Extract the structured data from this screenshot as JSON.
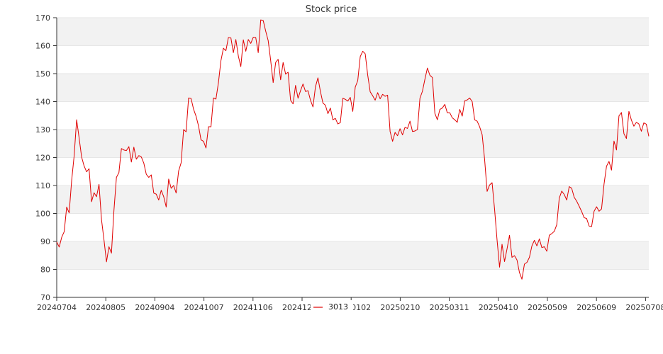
{
  "chart_data": {
    "type": "line",
    "title": "Stock price",
    "xlabel": "",
    "ylabel": "",
    "ylim": [
      70,
      170
    ],
    "yticks": [
      70,
      80,
      90,
      100,
      110,
      120,
      130,
      140,
      150,
      160,
      170
    ],
    "xtick_labels": [
      "20240704",
      "20240805",
      "20240904",
      "20241007",
      "20241106",
      "20241206",
      "20250102",
      "20250210",
      "20250311",
      "20250410",
      "20250509",
      "20250609",
      "20250708"
    ],
    "grid": "horizontal bands",
    "legend_position": "bottom-center",
    "series": [
      {
        "name": "3013",
        "color": "#e00000",
        "values": [
          89.8,
          88.0,
          91.5,
          93.5,
          102.3,
          100.2,
          111.8,
          120.6,
          133.5,
          127.0,
          120.2,
          117.0,
          114.9,
          116.0,
          104.2,
          107.4,
          106.0,
          110.4,
          97.8,
          90.5,
          82.7,
          88.1,
          85.8,
          101.1,
          112.9,
          114.6,
          123.2,
          122.7,
          122.5,
          123.9,
          118.4,
          123.7,
          119.4,
          120.7,
          120.2,
          118.0,
          114.0,
          112.9,
          113.8,
          107.3,
          106.9,
          104.8,
          108.3,
          106.0,
          102.3,
          112.3,
          109.0,
          110.0,
          107.3,
          115.2,
          118.1,
          130.0,
          129.2,
          141.3,
          141.1,
          137.3,
          134.8,
          131.3,
          126.3,
          125.8,
          123.4,
          131.0,
          131.0,
          141.3,
          140.9,
          146.8,
          154.6,
          159.1,
          158.2,
          162.9,
          162.8,
          157.5,
          162.2,
          156.3,
          152.5,
          162.1,
          158.0,
          162.2,
          160.8,
          163.0,
          162.9,
          157.5,
          169.2,
          169.0,
          165.2,
          161.8,
          154.7,
          146.8,
          154.0,
          155.1,
          147.8,
          154.0,
          149.8,
          150.5,
          140.5,
          139.2,
          145.8,
          141.2,
          143.9,
          146.3,
          143.6,
          143.9,
          140.5,
          138.1,
          145.3,
          148.5,
          143.6,
          139.5,
          138.7,
          135.7,
          137.7,
          133.5,
          134.0,
          132.0,
          132.5,
          141.2,
          140.8,
          140.2,
          141.5,
          136.5,
          145.2,
          147.5,
          156.1,
          158.0,
          157.1,
          149.5,
          143.5,
          142.1,
          140.5,
          143.2,
          141.0,
          142.6,
          141.9,
          142.3,
          129.3,
          125.8,
          129.0,
          127.8,
          130.3,
          128.1,
          130.8,
          130.4,
          133.0,
          129.3,
          129.5,
          130.0,
          141.2,
          143.7,
          148.0,
          152.0,
          149.4,
          148.6,
          135.8,
          133.5,
          137.2,
          137.7,
          139.0,
          136.0,
          136.0,
          134.2,
          133.5,
          132.6,
          137.2,
          134.8,
          140.3,
          140.6,
          141.3,
          140.0,
          133.5,
          133.0,
          131.0,
          128.2,
          119.3,
          107.9,
          110.2,
          111.0,
          101.5,
          90.5,
          80.8,
          89.0,
          82.8,
          87.3,
          92.2,
          84.3,
          84.9,
          83.4,
          78.9,
          76.5,
          81.9,
          82.5,
          84.3,
          88.4,
          90.4,
          88.4,
          90.9,
          87.8,
          88.1,
          86.5,
          92.2,
          92.8,
          93.6,
          96.0,
          105.5,
          108.0,
          106.8,
          104.8,
          109.6,
          109.0,
          105.8,
          104.4,
          102.6,
          100.7,
          98.5,
          98.2,
          95.5,
          95.3,
          100.8,
          102.4,
          100.8,
          101.6,
          110.5,
          116.9,
          118.6,
          115.5,
          125.9,
          122.7,
          134.9,
          136.1,
          128.5,
          126.8,
          136.5,
          133.4,
          131.2,
          132.6,
          132.0,
          129.4,
          132.4,
          131.9,
          127.6
        ]
      }
    ]
  }
}
